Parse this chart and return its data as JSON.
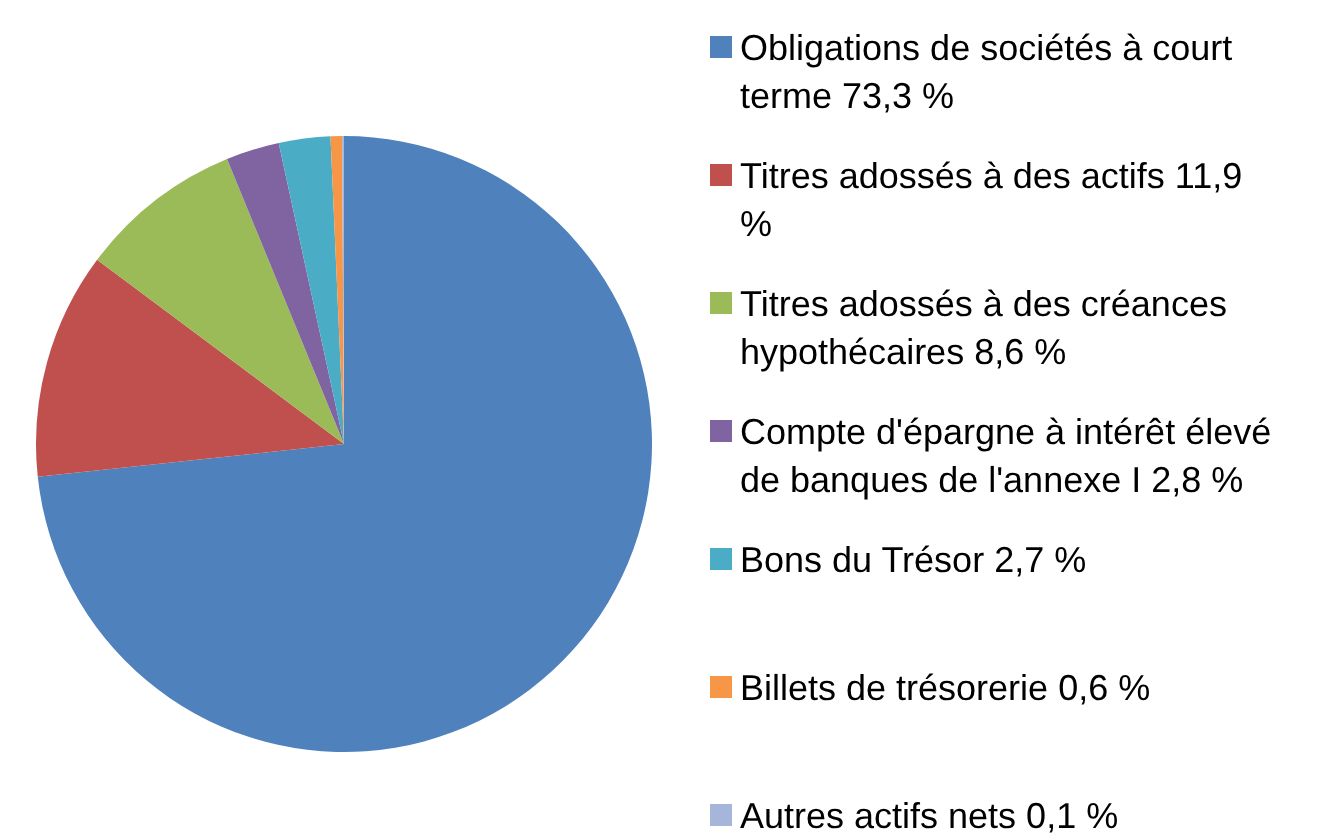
{
  "chart_data": {
    "type": "pie",
    "categories": [
      "Obligations de sociétés à court terme 73,3 %",
      "Titres adossés à des actifs 11,9 %",
      "Titres adossés à des créances hypothécaires 8,6 %",
      "Compte d'épargne à intérêt élevé de banques de l'annexe I 2,8 %",
      "Bons du Trésor 2,7 %",
      "Billets de trésorerie 0,6 %",
      "Autres actifs nets 0,1 %"
    ],
    "values": [
      73.3,
      11.9,
      8.6,
      2.8,
      2.7,
      0.6,
      0.1
    ],
    "colors": [
      "#4f81bd",
      "#c0504d",
      "#9bbb59",
      "#8064a2",
      "#4bacc6",
      "#f79646",
      "#a5b6da"
    ],
    "legend": "right"
  }
}
